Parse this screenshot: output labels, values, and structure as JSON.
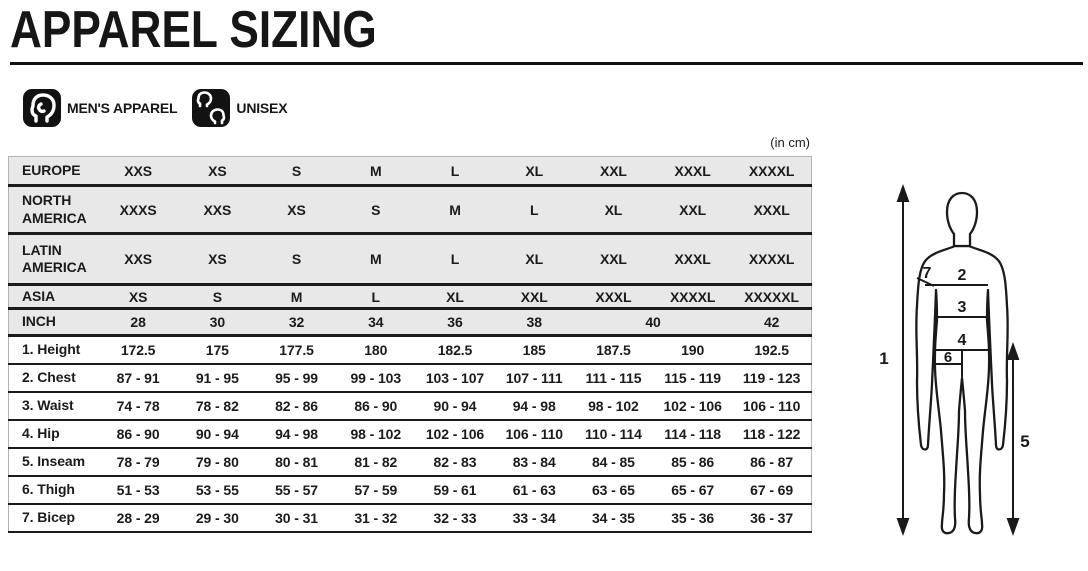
{
  "header": {
    "title": "APPAREL SIZING"
  },
  "legend": {
    "items": [
      {
        "icon": "mens-head-profile-icon",
        "label": "MEN'S APPAREL"
      },
      {
        "icon": "unisex-two-heads-icon",
        "label": "UNISEX"
      }
    ]
  },
  "table": {
    "unit_note": "(in cm)",
    "rows": [
      {
        "kind": "region",
        "label": "EUROPE",
        "cells": [
          "XXS",
          "XS",
          "S",
          "M",
          "L",
          "XL",
          "XXL",
          "XXXL",
          "XXXXL"
        ]
      },
      {
        "kind": "region",
        "label": "NORTH AMERICA",
        "cells": [
          "XXXS",
          "XXS",
          "XS",
          "S",
          "M",
          "L",
          "XL",
          "XXL",
          "XXXL"
        ]
      },
      {
        "kind": "region",
        "label": "LATIN AMERICA",
        "cells": [
          "XXS",
          "XS",
          "S",
          "M",
          "L",
          "XL",
          "XXL",
          "XXXL",
          "XXXXL"
        ]
      },
      {
        "kind": "region",
        "label": "ASIA",
        "cells": [
          "XS",
          "S",
          "M",
          "L",
          "XL",
          "XXL",
          "XXXL",
          "XXXXL",
          "XXXXXL"
        ]
      },
      {
        "kind": "region",
        "label": "INCH",
        "cells": [
          "28",
          "30",
          "32",
          "34",
          "36",
          "38",
          {
            "text": "40",
            "colspan": 2
          },
          "42"
        ]
      },
      {
        "kind": "measure",
        "label": "1. Height",
        "cells": [
          "172.5",
          "175",
          "177.5",
          "180",
          "182.5",
          "185",
          "187.5",
          "190",
          "192.5"
        ]
      },
      {
        "kind": "measure",
        "label": "2. Chest",
        "cells": [
          "87 - 91",
          "91 - 95",
          "95 - 99",
          "99 - 103",
          "103 - 107",
          "107 - 111",
          "111 - 115",
          "115 - 119",
          "119 - 123"
        ]
      },
      {
        "kind": "measure",
        "label": "3. Waist",
        "cells": [
          "74 - 78",
          "78 - 82",
          "82 - 86",
          "86 - 90",
          "90 - 94",
          "94 - 98",
          "98 - 102",
          "102 - 106",
          "106 - 110"
        ]
      },
      {
        "kind": "measure",
        "label": "4. Hip",
        "cells": [
          "86 - 90",
          "90 - 94",
          "94 - 98",
          "98 - 102",
          "102 - 106",
          "106 - 110",
          "110 - 114",
          "114 - 118",
          "118 - 122"
        ]
      },
      {
        "kind": "measure",
        "label": "5. Inseam",
        "cells": [
          "78 - 79",
          "79 - 80",
          "80 - 81",
          "81 - 82",
          "82 - 83",
          "83 - 84",
          "84 - 85",
          "85 - 86",
          "86 - 87"
        ]
      },
      {
        "kind": "measure",
        "label": "6. Thigh",
        "cells": [
          "51 - 53",
          "53 - 55",
          "55 - 57",
          "57 - 59",
          "59 - 61",
          "61 - 63",
          "63 - 65",
          "65 - 67",
          "67 - 69"
        ]
      },
      {
        "kind": "measure",
        "label": "7. Bicep",
        "cells": [
          "28 - 29",
          "29 - 30",
          "30 - 31",
          "31 - 32",
          "32 - 33",
          "33 - 34",
          "34 - 35",
          "35 - 36",
          "36 - 37"
        ]
      }
    ]
  },
  "figure": {
    "labels": {
      "height": "1",
      "chest": "2",
      "waist": "3",
      "hip": "4",
      "inseam": "5",
      "thigh": "6",
      "bicep": "7"
    }
  },
  "colors": {
    "ink": "#1a1a1a",
    "region_row_bg": "#e8e8e8",
    "measure_row_bg": "#ffffff",
    "icon_bg": "#121212"
  }
}
